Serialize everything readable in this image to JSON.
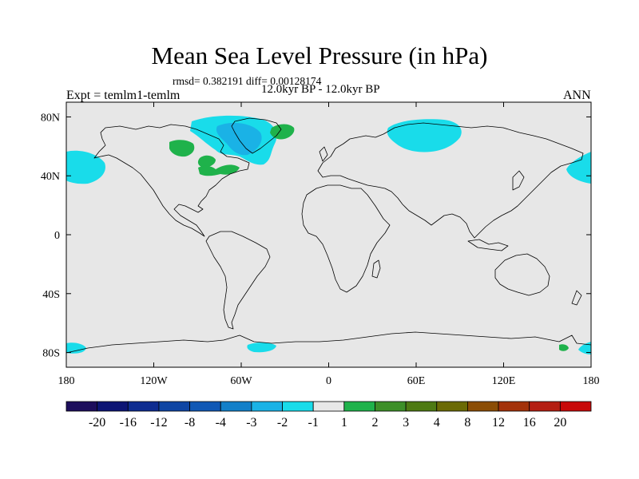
{
  "title": "Mean Sea Level Pressure (in hPa)",
  "stats_line": "rmsd= 0.382191 diff= 0.00128174",
  "periods_line": "12.0kyr BP - 12.0kyr BP",
  "experiment_label": "Expt = temlm1-temlm",
  "season_label": "ANN",
  "map": {
    "projection": "cylindrical equidistant",
    "lon_range": [
      -180,
      180
    ],
    "lat_range": [
      -90,
      90
    ],
    "background_color": "#e7e7e7",
    "x_ticks": [
      {
        "value": -180,
        "label": "180"
      },
      {
        "value": -120,
        "label": "120W"
      },
      {
        "value": -60,
        "label": "60W"
      },
      {
        "value": 0,
        "label": "0"
      },
      {
        "value": 60,
        "label": "60E"
      },
      {
        "value": 120,
        "label": "120E"
      },
      {
        "value": 180,
        "label": "180"
      }
    ],
    "y_ticks": [
      {
        "value": 80,
        "label": "80N"
      },
      {
        "value": 40,
        "label": "40N"
      },
      {
        "value": 0,
        "label": "0"
      },
      {
        "value": -40,
        "label": "40S"
      },
      {
        "value": -80,
        "label": "80S"
      }
    ]
  },
  "anomaly_regions": [
    {
      "name": "north-pacific-west-negative",
      "category": "-2 to -1",
      "color": "#19dcea"
    },
    {
      "name": "north-pacific-east-negative",
      "category": "-2 to -1",
      "color": "#19dcea"
    },
    {
      "name": "greenland-negative",
      "category": "-2 to -1",
      "color": "#19dcea"
    },
    {
      "name": "greenland-core-negative",
      "category": "-3 to -2",
      "color": "#1ab2e6"
    },
    {
      "name": "siberia-negative",
      "category": "-2 to -1",
      "color": "#19dcea"
    },
    {
      "name": "canada-positive",
      "category": "1 to 2",
      "color": "#1fb24b"
    },
    {
      "name": "greenland-east-positive",
      "category": "1 to 2",
      "color": "#1fb24b"
    },
    {
      "name": "hudson-positive",
      "category": "1 to 2",
      "color": "#1fb24b"
    },
    {
      "name": "us-east-positive",
      "category": "1 to 2",
      "color": "#1fb24b"
    },
    {
      "name": "antarctic-negative-1",
      "category": "-2 to -1",
      "color": "#19dcea"
    },
    {
      "name": "antarctic-negative-2",
      "category": "-2 to -1",
      "color": "#19dcea"
    },
    {
      "name": "antarctic-negative-3",
      "category": "-2 to -1",
      "color": "#19dcea"
    },
    {
      "name": "antarctic-positive",
      "category": "1 to 2",
      "color": "#1fb24b"
    }
  ],
  "colorbar": {
    "labels": [
      "-20",
      "-16",
      "-12",
      "-8",
      "-4",
      "-3",
      "-2",
      "-1",
      "1",
      "2",
      "3",
      "4",
      "8",
      "12",
      "16",
      "20"
    ],
    "colors": [
      "#1d0e5c",
      "#0d1574",
      "#0e2c90",
      "#0f45a3",
      "#1058b5",
      "#1380c9",
      "#1ab2e6",
      "#19dcea",
      "#e7e7e7",
      "#1fb24b",
      "#3d8f28",
      "#4e7a13",
      "#6b6a05",
      "#8b4d05",
      "#a3320a",
      "#b41e12",
      "#c80a0a"
    ]
  }
}
